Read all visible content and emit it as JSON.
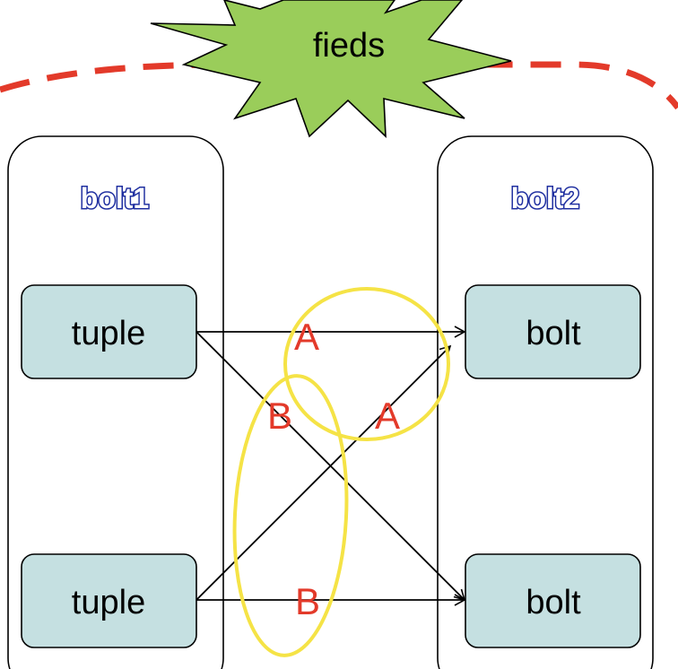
{
  "burst": {
    "label": "fieds",
    "fill": "#9ACD5A",
    "stroke": "#000000"
  },
  "boundary": {
    "color": "#E33A2A"
  },
  "columns": [
    {
      "title": "bolt1",
      "title_color": "#1F2FA0"
    },
    {
      "title": "bolt2",
      "title_color": "#1F2FA0"
    }
  ],
  "nodes": {
    "left": [
      "tuple",
      "tuple"
    ],
    "right": [
      "bolt",
      "bolt"
    ],
    "fill": "#C5E0E1"
  },
  "edge_labels": {
    "top_straight": "A",
    "top_cross": "A",
    "bottom_cross": "B",
    "bottom_straight": "B",
    "color": "#E33A2A"
  },
  "groups": {
    "color": "#F5E346"
  }
}
